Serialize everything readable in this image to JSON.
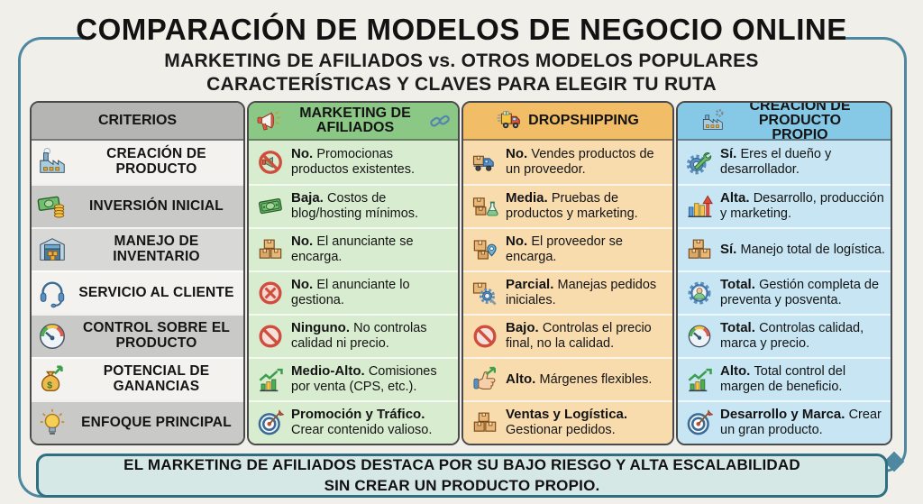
{
  "header": {
    "title": "COMPARACIÓN DE MODELOS DE NEGOCIO ONLINE",
    "subtitle1": "MARKETING DE AFILIADOS vs. OTROS MODELOS POPULARES",
    "subtitle2": "CARACTERÍSTICAS Y CLAVES PARA ELEGIR TU RUTA"
  },
  "palette": {
    "background": "#f0efe9",
    "frame_teal": "#4d88a0",
    "title_color": "#121212",
    "card_border": "#4a4a4a",
    "criteria_header_bg": "#b5b5b3",
    "criteria_row_light": "#f3f2ee",
    "criteria_row_mid": "#d8d8d6",
    "criteria_row_dark": "#c9c9c7",
    "footer_bg": "#d6e8e6",
    "footer_border": "#2f6f80"
  },
  "table": {
    "criteria_header": "CRITERIOS",
    "columns": [
      {
        "id": "afiliados",
        "label": "MARKETING DE AFILIADOS",
        "icon_left": "megaphone-icon",
        "icon_right": "chain-link-icon",
        "header_color": "#8cc885",
        "body_color": "#d8ecd0"
      },
      {
        "id": "dropshipping",
        "label": "DROPSHIPPING",
        "icon_left": "delivery-truck-icon",
        "icon_right": null,
        "header_color": "#f1bd66",
        "body_color": "#f9dcae"
      },
      {
        "id": "propio",
        "label": "CREACIÓN DE PRODUCTO PROPIO",
        "icon_left": "factory-gear-icon",
        "icon_right": null,
        "header_color": "#85c9e6",
        "body_color": "#c7e5f3"
      }
    ],
    "rows": [
      {
        "criterion": "CREACIÓN DE PRODUCTO",
        "criterion_icon": "factory-icon",
        "shade": "light",
        "cells": {
          "afiliados": {
            "icon": "no-megaphone-icon",
            "lead": "No.",
            "text": "Promocionas productos existentes."
          },
          "dropshipping": {
            "icon": "truck-box-icon",
            "lead": "No.",
            "text": "Vendes productos de un proveedor."
          },
          "propio": {
            "icon": "gear-wrench-icon",
            "lead": "Sí.",
            "text": "Eres el dueño y desarrollador."
          }
        }
      },
      {
        "criterion": "INVERSIÓN INICIAL",
        "criterion_icon": "cash-icon",
        "shade": "dark",
        "cells": {
          "afiliados": {
            "icon": "banknote-icon",
            "lead": "Baja.",
            "text": "Costos de blog/hosting mínimos."
          },
          "dropshipping": {
            "icon": "boxes-flask-icon",
            "lead": "Media.",
            "text": "Pruebas de productos y marketing."
          },
          "propio": {
            "icon": "growth-bars-icon",
            "lead": "Alta.",
            "text": "Desarrollo, producción y marketing."
          }
        }
      },
      {
        "criterion": "MANEJO DE INVENTARIO",
        "criterion_icon": "warehouse-icon",
        "shade": "mid",
        "cells": {
          "afiliados": {
            "icon": "stacked-boxes-icon",
            "lead": "No.",
            "text": "El anunciante se encarga."
          },
          "dropshipping": {
            "icon": "box-pin-icon",
            "lead": "No.",
            "text": "El proveedor se encarga."
          },
          "propio": {
            "icon": "stacked-boxes-icon",
            "lead": "Sí.",
            "text": "Manejo total de logística."
          }
        }
      },
      {
        "criterion": "SERVICIO AL CLIENTE",
        "criterion_icon": "headset-icon",
        "shade": "light",
        "cells": {
          "afiliados": {
            "icon": "x-circle-icon",
            "lead": "No.",
            "text": "El anunciante lo gestiona."
          },
          "dropshipping": {
            "icon": "box-search-icon",
            "lead": "Parcial.",
            "text": "Manejas pedidos iniciales."
          },
          "propio": {
            "icon": "person-gear-icon",
            "lead": "Total.",
            "text": "Gestión completa de preventa y posventa."
          }
        }
      },
      {
        "criterion": "CONTROL SOBRE EL PRODUCTO",
        "criterion_icon": "gauge-icon",
        "shade": "dark",
        "cells": {
          "afiliados": {
            "icon": "prohibited-icon",
            "lead": "Ninguno.",
            "text": "No controlas calidad ni precio."
          },
          "dropshipping": {
            "icon": "prohibited-icon",
            "lead": "Bajo.",
            "text": "Controlas el precio final, no la calidad."
          },
          "propio": {
            "icon": "gauge-icon",
            "lead": "Total.",
            "text": "Controlas calidad, marca y precio."
          }
        }
      },
      {
        "criterion": "POTENCIAL DE GANANCIAS",
        "criterion_icon": "money-bag-icon",
        "shade": "light",
        "cells": {
          "afiliados": {
            "icon": "chart-up-icon",
            "lead": "Medio-Alto.",
            "text": "Comisiones por venta (CPS, etc.)."
          },
          "dropshipping": {
            "icon": "thumb-arrow-icon",
            "lead": "Alto.",
            "text": "Márgenes flexibles."
          },
          "propio": {
            "icon": "chart-up-icon",
            "lead": "Alto.",
            "text": "Total control del margen de beneficio."
          }
        }
      },
      {
        "criterion": "ENFOQUE PRINCIPAL",
        "criterion_icon": "lightbulb-icon",
        "shade": "dark",
        "cells": {
          "afiliados": {
            "icon": "target-icon",
            "lead": "Promoción y Tráfico.",
            "text": "Crear contenido valioso."
          },
          "dropshipping": {
            "icon": "stacked-boxes-icon",
            "lead": "Ventas y Logística.",
            "text": "Gestionar pedidos."
          },
          "propio": {
            "icon": "target-icon",
            "lead": "Desarrollo y Marca.",
            "text": "Crear un gran producto."
          }
        }
      }
    ]
  },
  "footer": {
    "line1": "EL MARKETING DE AFILIADOS DESTACA POR SU BAJO RIESGO Y ALTA ESCALABILIDAD",
    "line2": "SIN CREAR UN PRODUCTO PROPIO."
  }
}
